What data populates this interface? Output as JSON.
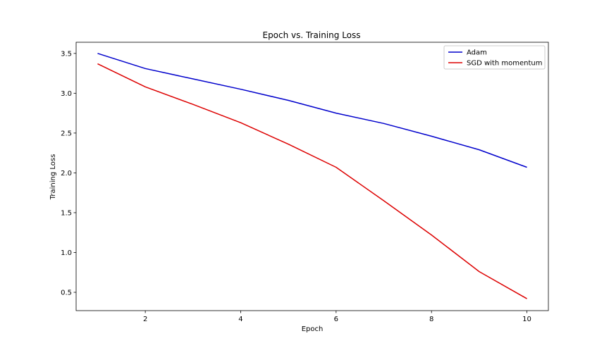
{
  "chart_data": {
    "type": "line",
    "title": "Epoch vs. Training Loss",
    "xlabel": "Epoch",
    "ylabel": "Training Loss",
    "x": [
      1,
      2,
      3,
      4,
      5,
      6,
      7,
      8,
      9,
      10
    ],
    "xlim": [
      0.55,
      10.45
    ],
    "ylim": [
      0.27,
      3.64
    ],
    "xticks": [
      2,
      4,
      6,
      8,
      10
    ],
    "yticks": [
      0.5,
      1.0,
      1.5,
      2.0,
      2.5,
      3.0,
      3.5
    ],
    "xtick_labels": [
      "2",
      "4",
      "6",
      "8",
      "10"
    ],
    "ytick_labels": [
      "0.5",
      "1.0",
      "1.5",
      "2.0",
      "2.5",
      "3.0",
      "3.5"
    ],
    "grid": false,
    "legend_position": "top-right",
    "series": [
      {
        "name": "Adam",
        "color": "#0000cc",
        "values": [
          3.5,
          3.31,
          3.18,
          3.05,
          2.91,
          2.75,
          2.62,
          2.46,
          2.29,
          2.07
        ]
      },
      {
        "name": "SGD with momentum",
        "color": "#dd0000",
        "values": [
          3.37,
          3.08,
          2.86,
          2.63,
          2.36,
          2.07,
          1.65,
          1.22,
          0.76,
          0.42
        ]
      }
    ]
  }
}
